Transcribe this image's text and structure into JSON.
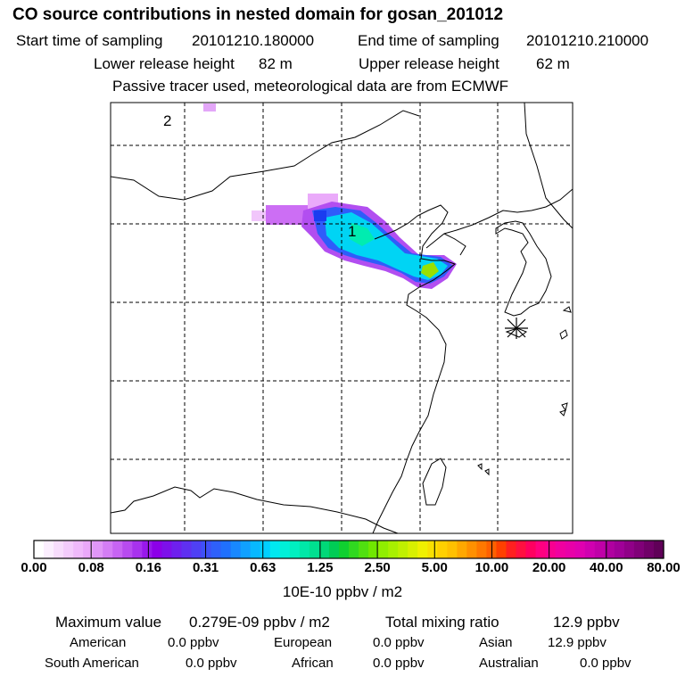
{
  "header": {
    "title": "CO  source contributions in nested domain for gosan_201012",
    "start_label": "Start time of sampling",
    "start_value": "20101210.180000",
    "end_label": "End time of sampling",
    "end_value": "20101210.210000",
    "lower_label": "Lower release height",
    "lower_value": "82 m",
    "upper_label": "Upper release height",
    "upper_value": "62 m",
    "note": "Passive tracer used, meteorological data are from ECMWF"
  },
  "map": {
    "labels": [
      "1",
      "2"
    ],
    "receptor_marker": "asterisk-receptor-icon"
  },
  "colorbar": {
    "ticks": [
      "0.00",
      "0.08",
      "0.16",
      "0.31",
      "0.63",
      "1.25",
      "2.50",
      "5.00",
      "10.00",
      "20.00",
      "40.00",
      "80.00"
    ],
    "unit": "10E-10 ppbv / m2",
    "colors": [
      "#ffffff",
      "#fbeefe",
      "#f7dcfc",
      "#f3cbfb",
      "#efb9fa",
      "#eaa8f9",
      "#e096f7",
      "#d47df5",
      "#c764f3",
      "#b84bf0",
      "#a832ee",
      "#9818eb",
      "#8c00e8",
      "#7d10eb",
      "#6e20ee",
      "#5f30f1",
      "#4f40f4",
      "#3f50f7",
      "#2f60fa",
      "#2070fd",
      "#1888ff",
      "#10a0ff",
      "#08b8ff",
      "#00d0ff",
      "#00e8f0",
      "#00f0d8",
      "#00f0c0",
      "#00e8a8",
      "#00e090",
      "#00d878",
      "#00cc55",
      "#10d030",
      "#30d820",
      "#50e010",
      "#70e800",
      "#90ee00",
      "#a8f000",
      "#c0f000",
      "#d8f000",
      "#f0f000",
      "#f8e000",
      "#ffd000",
      "#ffc000",
      "#ffa800",
      "#ff9000",
      "#ff7800",
      "#ff6000",
      "#ff4000",
      "#ff2020",
      "#ff1040",
      "#ff0060",
      "#ff0080",
      "#f80090",
      "#f000a0",
      "#e800a8",
      "#e000b0",
      "#d000b0",
      "#c000a8",
      "#b000a0",
      "#a00098",
      "#900088",
      "#800078",
      "#700068",
      "#600058"
    ]
  },
  "stats": {
    "max_label": "Maximum value",
    "max_value": "0.279E-09 ppbv / m2",
    "total_label": "Total mixing ratio",
    "total_value": "12.9 ppbv",
    "regions": [
      {
        "name": "American",
        "value": "0.0 ppbv"
      },
      {
        "name": "European",
        "value": "0.0 ppbv"
      },
      {
        "name": "Asian",
        "value": "12.9 ppbv"
      },
      {
        "name": "South American",
        "value": "0.0 ppbv"
      },
      {
        "name": "African",
        "value": "0.0 ppbv"
      },
      {
        "name": "Australian",
        "value": "0.0 ppbv"
      }
    ]
  }
}
